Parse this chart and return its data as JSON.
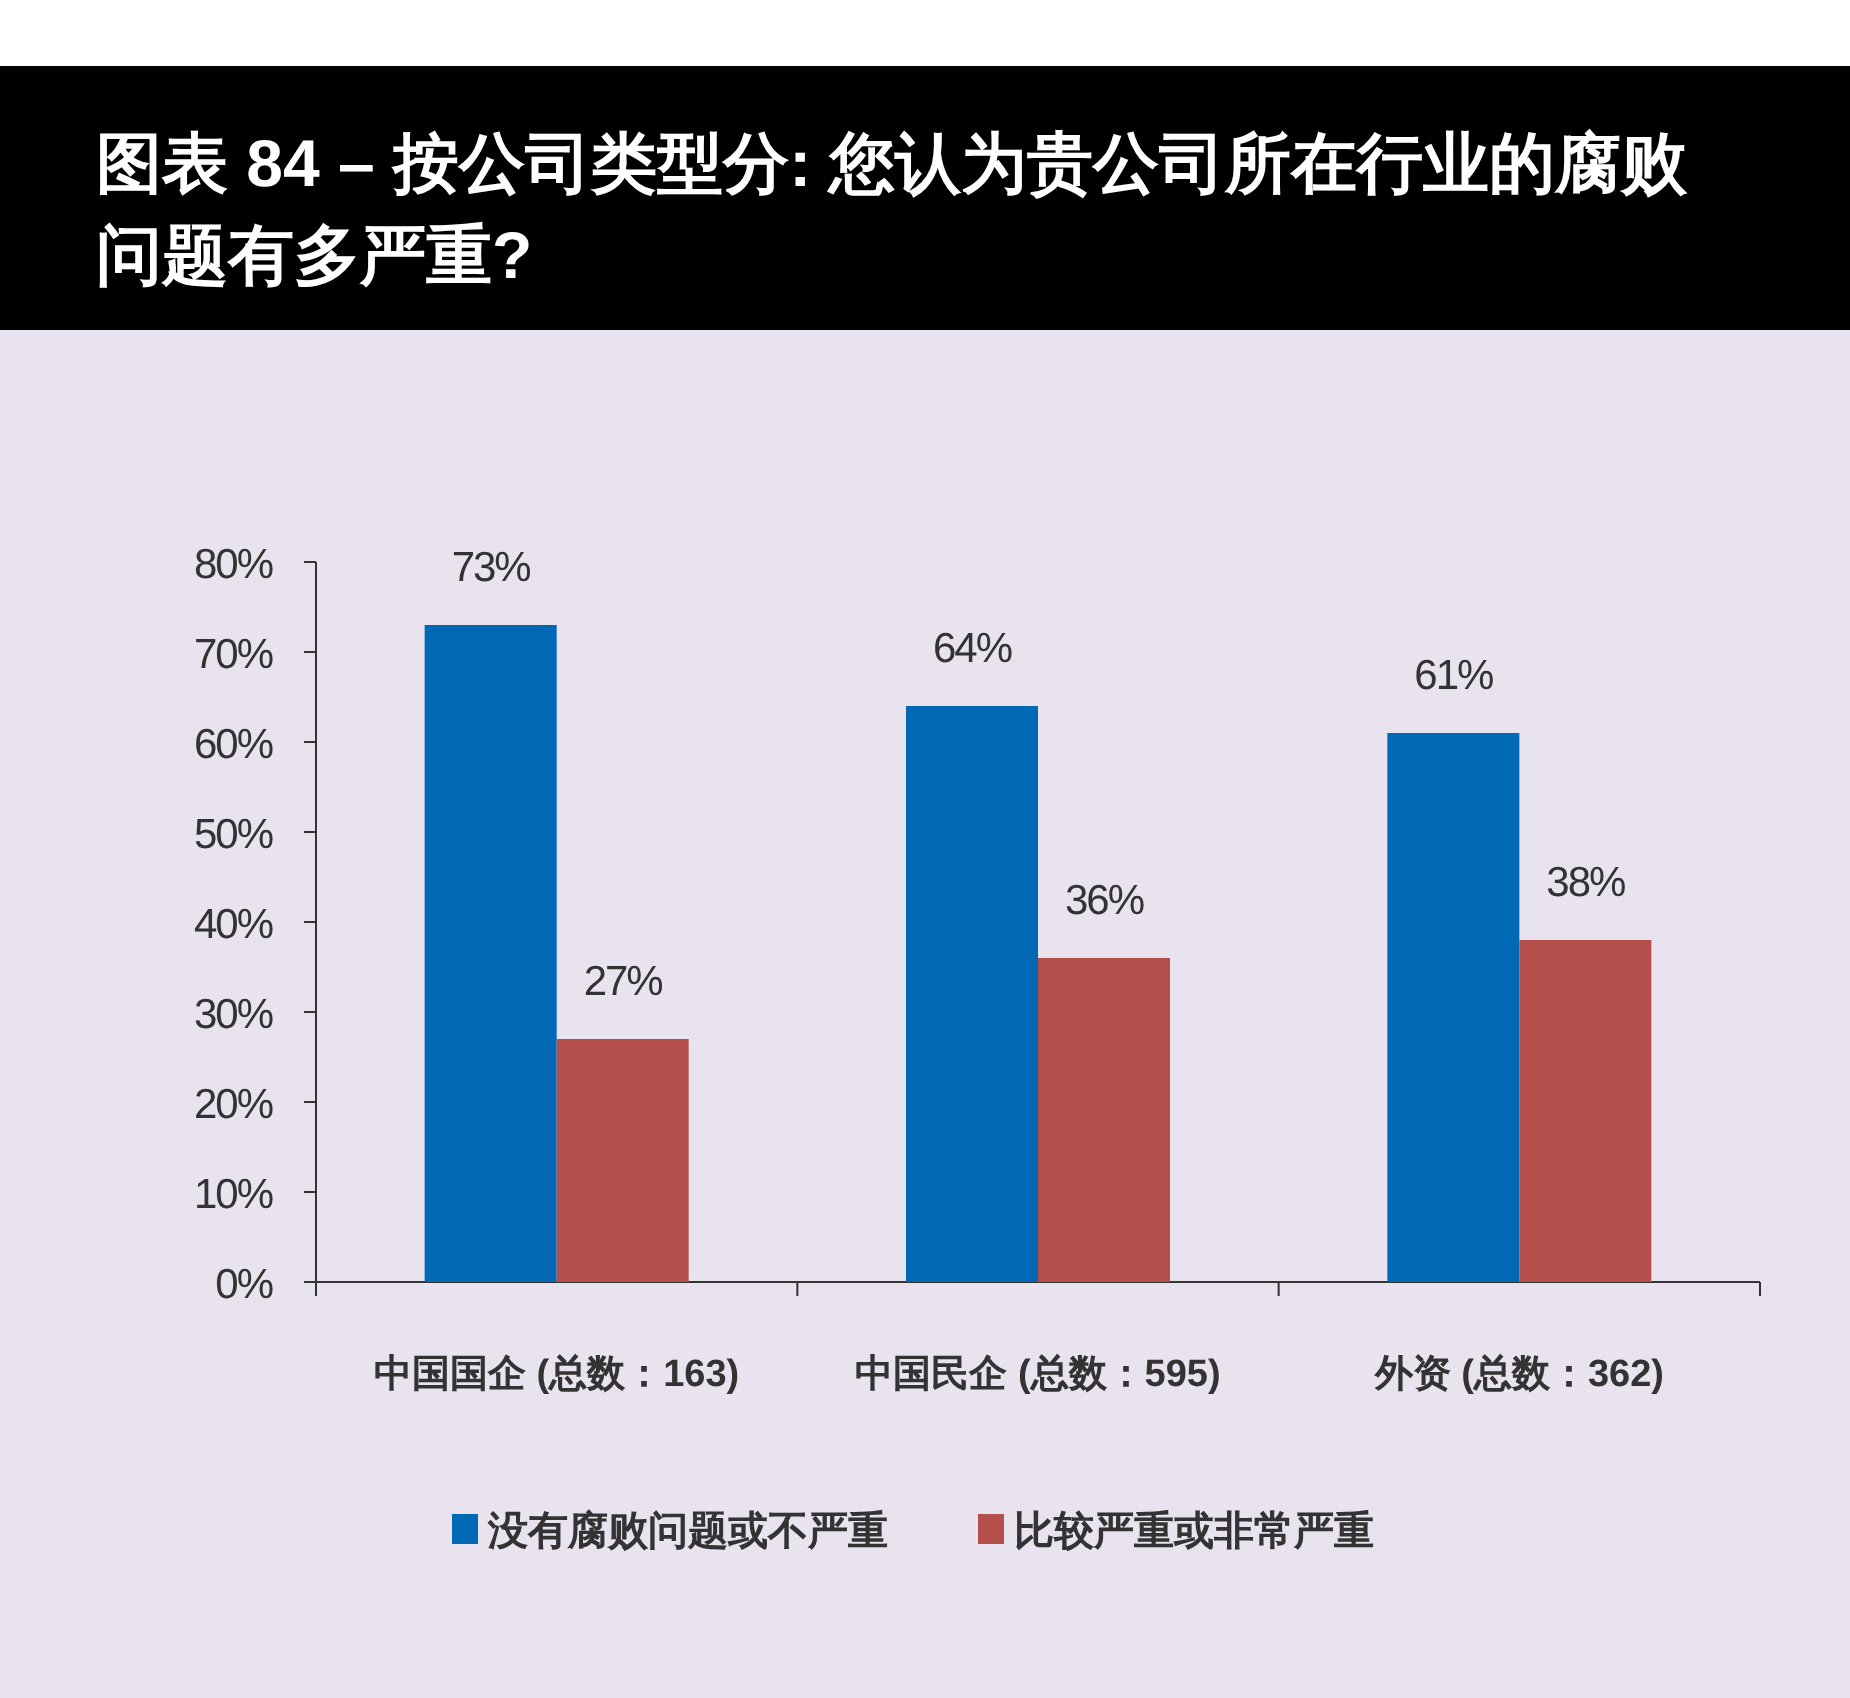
{
  "chart_data": {
    "type": "bar",
    "title": "图表 84 – 按公司类型分: 您认为贵公司所在行业的腐败问题有多严重?",
    "categories": [
      "中国国企 (总数：163)",
      "中国民企 (总数：595)",
      "外资 (总数：362)"
    ],
    "series": [
      {
        "name": "没有腐败问题或不严重",
        "color": "#0068b5",
        "values": [
          73,
          64,
          61
        ],
        "value_labels": [
          "73%",
          "64%",
          "61%"
        ]
      },
      {
        "name": "比较严重或非常严重",
        "color": "#b54f4c",
        "values": [
          27,
          36,
          38
        ],
        "value_labels": [
          "27%",
          "36%",
          "38%"
        ]
      }
    ],
    "ylim": [
      0,
      80
    ],
    "yticks": [
      {
        "value": 0,
        "label": "0%"
      },
      {
        "value": 10,
        "label": "10%"
      },
      {
        "value": 20,
        "label": "20%"
      },
      {
        "value": 30,
        "label": "30%"
      },
      {
        "value": 40,
        "label": "40%"
      },
      {
        "value": 50,
        "label": "50%"
      },
      {
        "value": 60,
        "label": "60%"
      },
      {
        "value": 70,
        "label": "70%"
      },
      {
        "value": 80,
        "label": "80%"
      }
    ],
    "grid": false,
    "legend": "bottom"
  }
}
